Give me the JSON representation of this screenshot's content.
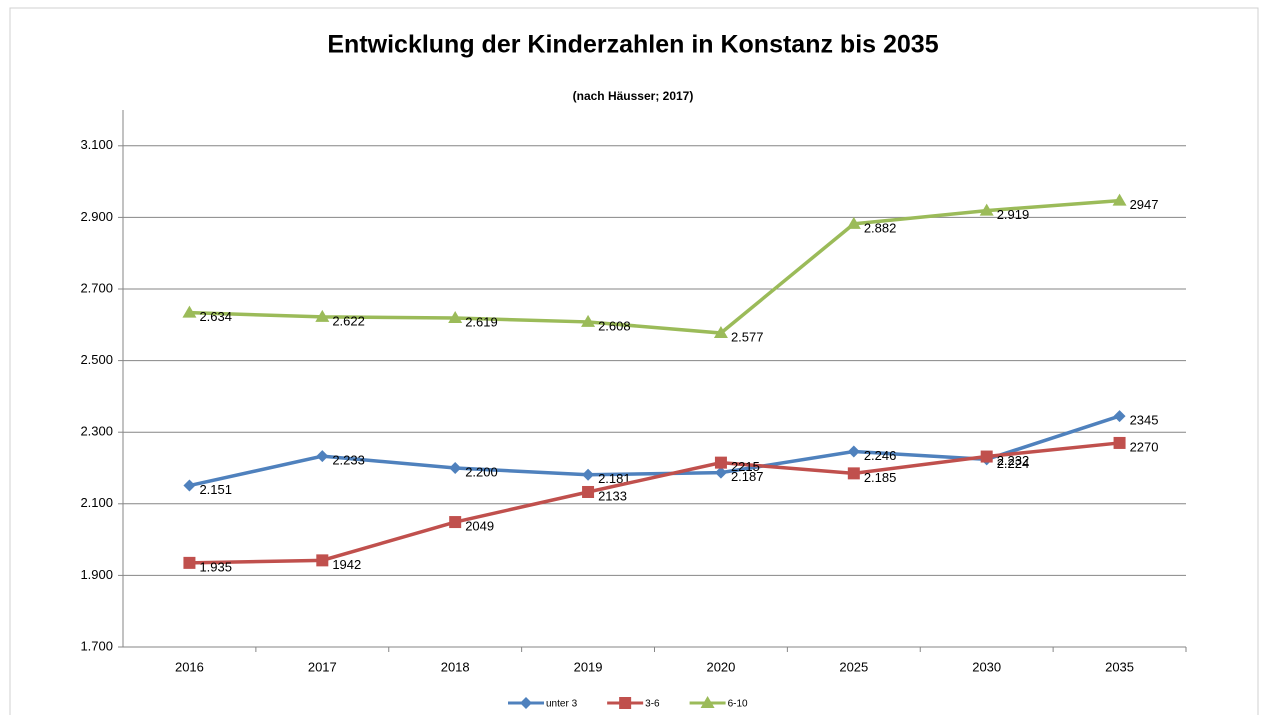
{
  "chart_data": {
    "type": "line",
    "title": "Entwicklung der Kinderzahlen in Konstanz bis 2035",
    "subtitle": "(nach Häusser; 2017)",
    "categories": [
      "2016",
      "2017",
      "2018",
      "2019",
      "2020",
      "2025",
      "2030",
      "2035"
    ],
    "series": [
      {
        "name": "unter 3",
        "color": "#4f81bd",
        "marker": "diamond",
        "values": [
          2151,
          2233,
          2200,
          2181,
          2187,
          2246,
          2224,
          2345
        ],
        "value_labels": [
          "2.151",
          "2.233",
          "2.200",
          "2.181",
          "2.187",
          "2.246",
          "2.224",
          "2345"
        ]
      },
      {
        "name": "3-6",
        "color": "#c0504d",
        "marker": "square",
        "values": [
          1935,
          1942,
          2049,
          2133,
          2215,
          2185,
          2232,
          2270
        ],
        "value_labels": [
          "1.935",
          "1942",
          "2049",
          "2133",
          "2215",
          "2.185",
          "2.232",
          "2270"
        ]
      },
      {
        "name": "6-10",
        "color": "#9bbb59",
        "marker": "triangle",
        "values": [
          2634,
          2622,
          2619,
          2608,
          2577,
          2882,
          2919,
          2947
        ],
        "value_labels": [
          "2.634",
          "2.622",
          "2.619",
          "2.608",
          "2.577",
          "2.882",
          "2.919",
          "2947"
        ]
      }
    ],
    "ylim": [
      1700,
      3200
    ],
    "yticks": [
      {
        "value": 1700,
        "label": "1.700"
      },
      {
        "value": 1900,
        "label": "1.900"
      },
      {
        "value": 2100,
        "label": "2.100"
      },
      {
        "value": 2300,
        "label": "2.300"
      },
      {
        "value": 2500,
        "label": "2.500"
      },
      {
        "value": 2700,
        "label": "2.700"
      },
      {
        "value": 2900,
        "label": "2.900"
      },
      {
        "value": 3100,
        "label": "3.100"
      }
    ],
    "grid": true,
    "legend": "bottom"
  }
}
